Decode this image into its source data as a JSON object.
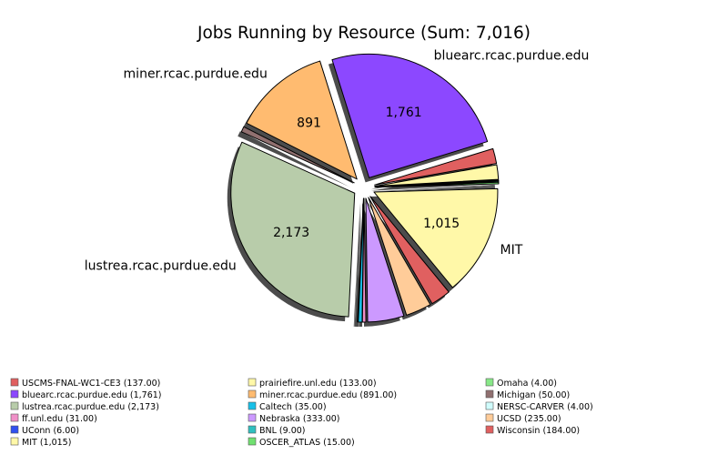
{
  "chart_data": {
    "type": "pie",
    "title": "Jobs Running by Resource (Sum: 7,016)",
    "slices": [
      {
        "name": "USCMS-FNAL-WC1-CE3",
        "value": 137,
        "color": "#e06060",
        "legend": "USCMS-FNAL-WC1-CE3 (137.00)"
      },
      {
        "name": "prairiefire.unl.edu",
        "value": 133,
        "color": "#fff8a8",
        "legend": "prairiefire.unl.edu (133.00)"
      },
      {
        "name": "Omaha",
        "value": 4,
        "color": "#88e888",
        "legend": "Omaha (4.00)"
      },
      {
        "name": "bluearc.rcac.purdue.edu",
        "value": 1761,
        "color": "#8c48ff",
        "legend": "bluearc.rcac.purdue.edu (1,761)",
        "label": "bluearc.rcac.purdue.edu",
        "value_label": "1,761"
      },
      {
        "name": "miner.rcac.purdue.edu",
        "value": 891,
        "color": "#ffbb70",
        "legend": "miner.rcac.purdue.edu (891.00)",
        "label": "miner.rcac.purdue.edu",
        "value_label": "891"
      },
      {
        "name": "Michigan",
        "value": 50,
        "color": "#907070",
        "legend": "Michigan (50.00)"
      },
      {
        "name": "lustrea.rcac.purdue.edu",
        "value": 2173,
        "color": "#b8ccaa",
        "legend": "lustrea.rcac.purdue.edu (2,173)",
        "label": "lustrea.rcac.purdue.edu",
        "value_label": "2,173"
      },
      {
        "name": "Caltech",
        "value": 35,
        "color": "#18c0e8",
        "legend": "Caltech (35.00)"
      },
      {
        "name": "NERSC-CARVER",
        "value": 4,
        "color": "#d0fcfc",
        "legend": "NERSC-CARVER (4.00)"
      },
      {
        "name": "ff.unl.edu",
        "value": 31,
        "color": "#f090c8",
        "legend": "ff.unl.edu (31.00)"
      },
      {
        "name": "Nebraska",
        "value": 333,
        "color": "#cc99ff",
        "legend": "Nebraska (333.00)"
      },
      {
        "name": "UCSD",
        "value": 235,
        "color": "#ffcc99",
        "legend": "UCSD (235.00)"
      },
      {
        "name": "UConn",
        "value": 6,
        "color": "#3050f0",
        "legend": "UConn (6.00)"
      },
      {
        "name": "BNL",
        "value": 9,
        "color": "#30c0c0",
        "legend": "BNL (9.00)"
      },
      {
        "name": "Wisconsin",
        "value": 184,
        "color": "#e06060",
        "legend": "Wisconsin (184.00)"
      },
      {
        "name": "MIT",
        "value": 1015,
        "color": "#fff8a8",
        "legend": "MIT (1,015)",
        "label": "MIT",
        "value_label": "1,015"
      },
      {
        "name": "OSCER_ATLAS",
        "value": 15,
        "color": "#70e070",
        "legend": "OSCER_ATLAS (15.00)"
      }
    ],
    "legend_columns": [
      [
        "USCMS-FNAL-WC1-CE3",
        "bluearc.rcac.purdue.edu",
        "lustrea.rcac.purdue.edu",
        "ff.unl.edu",
        "UConn",
        "MIT"
      ],
      [
        "prairiefire.unl.edu",
        "miner.rcac.purdue.edu",
        "Caltech",
        "Nebraska",
        "BNL",
        "OSCER_ATLAS"
      ],
      [
        "Omaha",
        "Michigan",
        "NERSC-CARVER",
        "UCSD",
        "Wisconsin"
      ]
    ],
    "pie_order": [
      "USCMS-FNAL-WC1-CE3",
      "bluearc.rcac.purdue.edu",
      "miner.rcac.purdue.edu",
      "Michigan",
      "lustrea.rcac.purdue.edu",
      "UConn",
      "Caltech",
      "ff.unl.edu",
      "Nebraska",
      "UCSD",
      "Wisconsin",
      "MIT",
      "OSCER_ATLAS",
      "BNL",
      "NERSC-CARVER",
      "Omaha",
      "prairiefire.unl.edu"
    ],
    "legend_placement": "bottom"
  }
}
